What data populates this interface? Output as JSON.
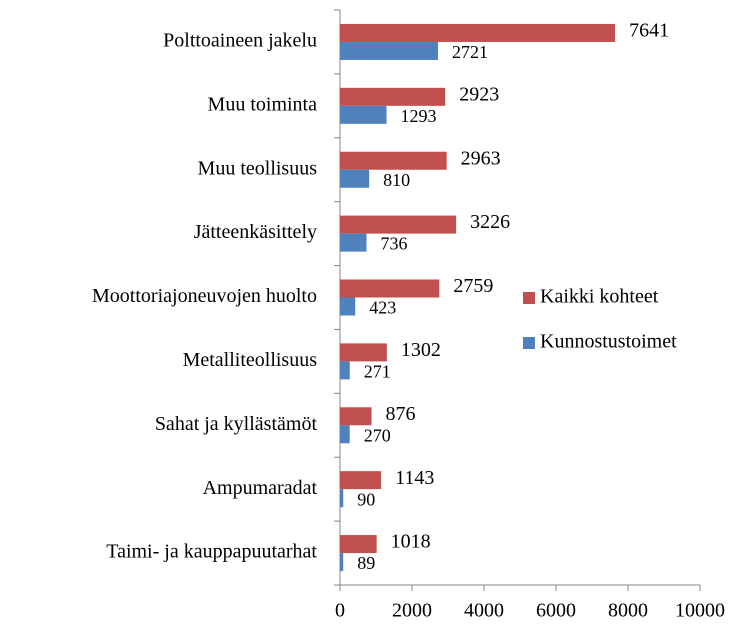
{
  "chart_data": {
    "type": "bar",
    "orientation": "horizontal",
    "categories": [
      "Polttoaineen jakelu",
      "Muu toiminta",
      "Muu teollisuus",
      "Jätteenkäsittely",
      "Moottoriajoneuvojen huolto",
      "Metalliteollisuus",
      "Sahat ja kyllästämöt",
      "Ampumaradat",
      "Taimi- ja kauppapuutarhat"
    ],
    "series": [
      {
        "name": "Kaikki kohteet",
        "color": "#c0504d",
        "values": [
          7641,
          2923,
          2963,
          3226,
          2759,
          1302,
          876,
          1143,
          1018
        ]
      },
      {
        "name": "Kunnostustoimet",
        "color": "#4f81bd",
        "values": [
          2721,
          1293,
          810,
          736,
          423,
          271,
          270,
          90,
          89
        ]
      }
    ],
    "xlim": [
      0,
      10000
    ],
    "xticks": [
      0,
      2000,
      4000,
      6000,
      8000,
      10000
    ],
    "legend": "right"
  }
}
